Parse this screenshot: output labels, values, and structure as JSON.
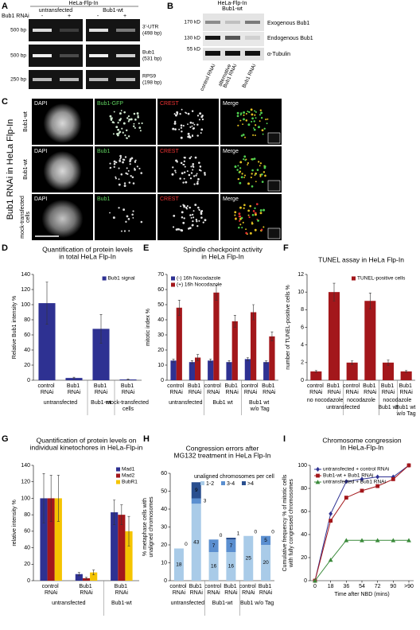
{
  "panel_labels": [
    "A",
    "B",
    "C",
    "D",
    "E",
    "F",
    "G",
    "H",
    "I"
  ],
  "panel_a": {
    "cell_line": "HeLa-Flp-In",
    "groups": [
      "untransfected",
      "Bub1-wt"
    ],
    "rnai_label": "Bub1 RNAi",
    "lanes": [
      "-",
      "+",
      "-",
      "+"
    ],
    "markers": [
      "500 bp",
      "500 bp",
      "250 bp"
    ],
    "products": [
      [
        "3'-UTR",
        "(498 bp)"
      ],
      [
        "Bub1",
        "(531 bp)"
      ],
      [
        "RPS9",
        "(198 bp)"
      ]
    ]
  },
  "panel_b": {
    "cell_line": [
      "HeLa-Flp-In",
      "Bub1-wt"
    ],
    "markers": [
      "170 kD",
      "130 kD",
      "55 kD"
    ],
    "bands": [
      "Exogenous Bub1",
      "Endogenous Bub1",
      "α-Tubulin"
    ],
    "lanes": [
      [
        "control RNAi"
      ],
      [
        "alternative",
        "Bub1 RNAi"
      ],
      [
        "Bub1 RNAi"
      ]
    ]
  },
  "panel_c": {
    "side_label": "Bub1 RNAi in HeLa Flp-In",
    "rows": [
      {
        "label": [
          "Bub1-wt"
        ],
        "channels": [
          "DAPI",
          "Bub1-GFP",
          "CREST",
          "Merge"
        ]
      },
      {
        "label": [
          "Bub1-wt"
        ],
        "channels": [
          "DAPI",
          "Bub1",
          "CREST",
          "Merge"
        ]
      },
      {
        "label": [
          "mock-transfected",
          "cells"
        ],
        "channels": [
          "DAPI",
          "Bub1",
          "CREST",
          "Merge"
        ]
      }
    ]
  },
  "chart_data": [
    {
      "type": "bar",
      "title": [
        "Quantification of protein levels",
        "in total HeLa Flp-In"
      ],
      "ylabel": [
        "Relative Bub1 intensity %"
      ],
      "categories": [
        "control RNAi",
        "Bub1 RNAi",
        "Bub1 RNAi",
        "Bub1 RNAi"
      ],
      "group_labels": [
        "untransfected",
        null,
        "Bub1-wt",
        "mock-transfected cells"
      ],
      "series": [
        {
          "name": "Bub1 signal",
          "color": "#2e3192",
          "values": [
            102,
            3,
            68,
            1
          ],
          "errors": [
            28,
            1,
            19,
            0.5
          ]
        }
      ],
      "ylim": [
        0,
        140
      ],
      "yticks": [
        0,
        20,
        40,
        60,
        80,
        100,
        120,
        140
      ],
      "legend": "upper right"
    },
    {
      "type": "bar",
      "title": [
        "Spindle checkpoint activity",
        "in HeLa Flp-In"
      ],
      "ylabel": [
        "mitotic index %"
      ],
      "categories": [
        "control RNAi",
        "Bub1 RNAi",
        "control RNAi",
        "Bub1 RNAi",
        "control RNAi",
        "Bub1 RNAi"
      ],
      "group_labels": [
        "untransfected",
        null,
        "Bub1 wt",
        null,
        "Bub1 wt w/o Tag",
        null
      ],
      "series": [
        {
          "name": "(-) 16h Nocodazole",
          "color": "#2e3192",
          "values": [
            13,
            12,
            13,
            12,
            14,
            12
          ],
          "errors": [
            1,
            1,
            1,
            1,
            1,
            0.8
          ]
        },
        {
          "name": "(+) 16h Nocodazole",
          "color": "#a3171b",
          "values": [
            48,
            15,
            58,
            39,
            45,
            29
          ],
          "errors": [
            5,
            2,
            5,
            4,
            5,
            3
          ]
        }
      ],
      "ylim": [
        0,
        70
      ],
      "yticks": [
        0,
        10,
        20,
        30,
        40,
        50,
        60,
        70
      ],
      "legend": "upper left"
    },
    {
      "type": "bar",
      "title": [
        "TUNEL assay in HeLa Flp-In"
      ],
      "ylabel": [
        "number of TUNEL-positive cells %"
      ],
      "categories": [
        "control RNAi",
        "Bub1 RNAi",
        "control RNAi",
        "Bub1 RNAi",
        "Bub1 RNAi",
        "Bub1 RNAi"
      ],
      "condition_labels": [
        "no nocodazole",
        null,
        "nocodazole",
        null,
        "nocodazole",
        null
      ],
      "group_labels": [
        "untransfected",
        null,
        null,
        null,
        "Bub1 wt",
        "Bub1 wt w/o Tag"
      ],
      "series": [
        {
          "name": "TUNEL-positive cells",
          "color": "#a3171b",
          "values": [
            1,
            10,
            2,
            9,
            2,
            1
          ],
          "errors": [
            0.1,
            1,
            0.2,
            0.9,
            0.3,
            0.1
          ]
        }
      ],
      "ylim": [
        0,
        12
      ],
      "yticks": [
        0,
        2,
        4,
        6,
        8,
        10,
        12
      ],
      "legend": "upper right"
    },
    {
      "type": "bar",
      "title": [
        "Quantification of protein levels on",
        "individual kinetochores in HeLa-Flp-in"
      ],
      "ylabel": [
        "relative intensity %"
      ],
      "categories": [
        "control RNAi",
        "Bub1 RNAi",
        "Bub1 RNAi"
      ],
      "group_labels": [
        "untransfected",
        null,
        "Bub1-wt"
      ],
      "series": [
        {
          "name": "Mad1",
          "color": "#2e3192",
          "values": [
            100,
            8,
            83
          ],
          "errors": [
            30,
            2,
            15
          ]
        },
        {
          "name": "Mad2",
          "color": "#a3171b",
          "values": [
            100,
            3,
            80
          ],
          "errors": [
            28,
            1,
            12
          ]
        },
        {
          "name": "BubR1",
          "color": "#f5c400",
          "values": [
            100,
            10,
            60
          ],
          "errors": [
            28,
            3,
            18
          ]
        }
      ],
      "ylim": [
        0,
        140
      ],
      "yticks": [
        0,
        20,
        40,
        60,
        80,
        100,
        120,
        140
      ],
      "legend": "upper right"
    },
    {
      "type": "bar",
      "stacked": true,
      "show_values": true,
      "title": [
        "Congression errors after",
        "MG132 treatment in HeLa Flp-In"
      ],
      "ylabel": [
        "% metaphase cells with",
        "unaligned chromosomes"
      ],
      "legend_title": "unaligned chromosomes per cell",
      "categories": [
        "control RNAi",
        "Bub1 RNAi",
        "control RNAi",
        "Bub1 RNAi",
        "control RNAi",
        "Bub1 RNAi"
      ],
      "group_labels": [
        "untransfected",
        null,
        "Bub1-wt",
        null,
        "Bub1 w/o Tag",
        null
      ],
      "series": [
        {
          "name": "1-2",
          "color": "#a9cbe8",
          "values": [
            18,
            43,
            16,
            16,
            25,
            20
          ]
        },
        {
          "name": "3-4",
          "color": "#5b8fd0",
          "values": [
            null,
            3,
            7,
            7,
            null,
            5
          ]
        },
        {
          "name": ">4",
          "color": "#2a4f8f",
          "values": [
            0,
            9,
            0,
            1,
            0,
            0
          ]
        }
      ],
      "ylim": [
        0,
        60
      ],
      "yticks": [
        0,
        10,
        20,
        30,
        40,
        50,
        60
      ],
      "legend": "upper right"
    },
    {
      "type": "line",
      "title": [
        "Chromosome congression",
        "In HeLa-Flp-In"
      ],
      "ylabel": [
        "Cumulative frequency % of mitotic cells",
        "with fully congressed chromosomes"
      ],
      "xlabel": "Time after NBD (mins)",
      "categories": [
        "0",
        "18",
        "36",
        "54",
        "72",
        "90",
        ">90"
      ],
      "series": [
        {
          "name": "untransfected + control RNAi",
          "color": "#2e3192",
          "marker": "diamond",
          "values": [
            0,
            58,
            86,
            88,
            90,
            90,
            100
          ]
        },
        {
          "name": "Bub1-wt + Bub1 RNAi",
          "color": "#a3171b",
          "marker": "square",
          "values": [
            0,
            52,
            72,
            78,
            82,
            88,
            100
          ]
        },
        {
          "name": "untransfected + Bub1 RNAi",
          "color": "#3a8a3a",
          "marker": "triangle",
          "values": [
            0,
            18,
            35,
            35,
            35,
            35,
            35
          ]
        }
      ],
      "ylim": [
        0,
        100
      ],
      "yticks": [
        0,
        20,
        40,
        60,
        80,
        100
      ],
      "legend": "upper left"
    }
  ]
}
